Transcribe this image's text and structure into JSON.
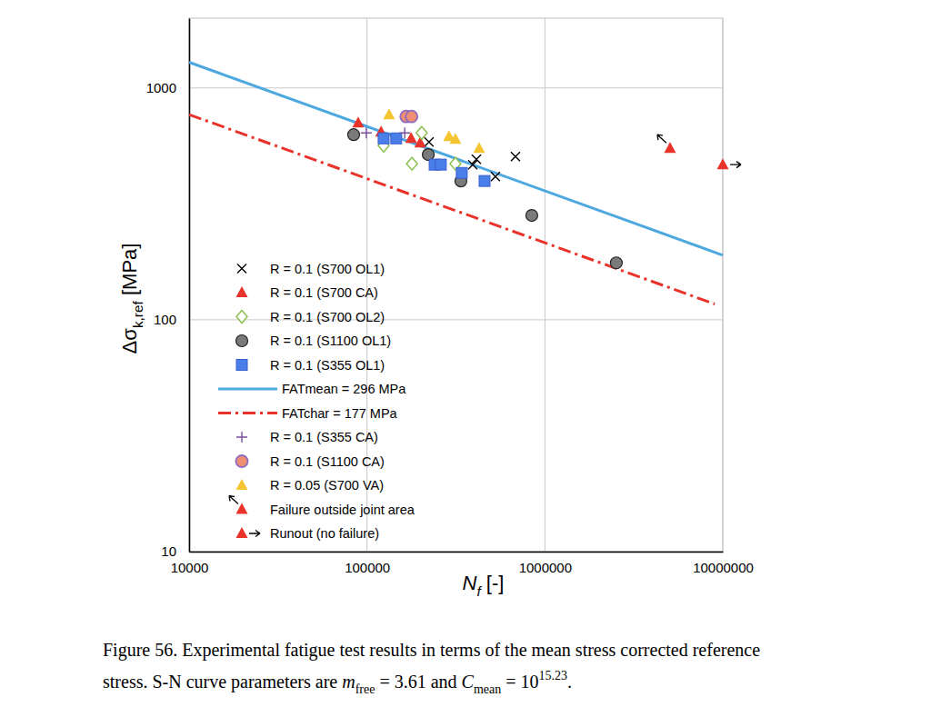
{
  "chart_data": {
    "type": "scatter",
    "log": true,
    "grid": true,
    "legend": "lower left",
    "xlabel": [
      {
        "text": "N",
        "style": "italic"
      },
      {
        "text": "f",
        "style": "sub-italic"
      },
      {
        "text": " [-]",
        "style": "normal"
      }
    ],
    "ylabel": [
      {
        "text": "Δσ",
        "style": "normal"
      },
      {
        "text": "k,ref",
        "style": "sub"
      },
      {
        "text": " [MPa]",
        "style": "normal"
      }
    ],
    "xlim": [
      10000,
      10000000
    ],
    "ylim": [
      10,
      2000
    ],
    "xticks": [
      10000,
      100000,
      1000000,
      10000000
    ],
    "yticks": [
      10,
      100,
      1000
    ],
    "series": [
      {
        "name": "R = 0.1 (S700 OL1)",
        "type": "scatter",
        "marker": "x",
        "color": "#000000",
        "x": [
          223000,
          683000,
          412000,
          393000,
          527000
        ],
        "values": [
          585,
          506,
          493,
          467,
          415
        ]
      },
      {
        "name": "R = 0.1 (S700 CA)",
        "type": "scatter",
        "marker": "triangle",
        "color": "#e8322a",
        "x": [
          89200,
          120000,
          177000,
          199000
        ],
        "values": [
          707,
          646,
          606,
          580
        ]
      },
      {
        "name": "R = 0.1 (S700 OL2)",
        "type": "scatter",
        "marker": "diamond",
        "color": "#8cc152",
        "x": [
          124000,
          179000,
          203000,
          314000
        ],
        "values": [
          564,
          471,
          640,
          471
        ]
      },
      {
        "name": "R = 0.1 (S1100 OL1)",
        "type": "scatter",
        "marker": "circle",
        "color": "#7a7a7a",
        "x": [
          84100,
          221000,
          337000,
          844000,
          2520000
        ],
        "values": [
          629,
          516,
          397,
          282,
          176
        ]
      },
      {
        "name": "R = 0.1 (S355 OL1)",
        "type": "scatter",
        "marker": "square",
        "color": "#4a7ee8",
        "x": [
          124000,
          146000,
          240000,
          260000,
          341000,
          458000
        ],
        "values": [
          606,
          606,
          467,
          467,
          430,
          397
        ]
      },
      {
        "name": "FATmean = 296 MPa",
        "type": "line",
        "line_style": "solid",
        "color": "#4ea8e0",
        "x": [
          10000,
          10000000
        ],
        "values": [
          1291,
          190
        ]
      },
      {
        "name": "FATchar = 177 MPa",
        "type": "line",
        "line_style": "dashdot",
        "color": "#e8322a",
        "x": [
          10000,
          9000000
        ],
        "values": [
          768,
          117
        ]
      },
      {
        "name": "R = 0.1 (S355 CA)",
        "type": "scatter",
        "marker": "plus",
        "color": "#7a4fa0",
        "x": [
          99100,
          163000
        ],
        "values": [
          640,
          640
        ]
      },
      {
        "name": "R = 0.1 (S1100 CA)",
        "type": "scatter",
        "marker": "ringed-circle",
        "color": "#ee8f73",
        "x": [
          166000,
          178000
        ],
        "values": [
          753,
          753
        ]
      },
      {
        "name": "R = 0.05 (S700 VA)",
        "type": "scatter",
        "marker": "triangle",
        "color": "#f5c431",
        "x": [
          133000,
          289000,
          314000,
          427000
        ],
        "values": [
          767,
          617,
          601,
          549
        ]
      },
      {
        "name": "Failure outside joint area",
        "type": "scatter",
        "marker": "failure-arrow",
        "color": "#e8322a",
        "x": [
          5050000
        ],
        "values": [
          549
        ]
      },
      {
        "name": "Runout (no failure)",
        "type": "scatter",
        "marker": "runout-arrow",
        "color": "#e8322a",
        "x": [
          10000000
        ],
        "values": [
          467
        ]
      }
    ],
    "caption": [
      [
        {
          "text": "Figure 56. Experimental fatigue test results in terms of the mean stress corrected reference",
          "style": "normal"
        }
      ],
      [
        {
          "text": "stress. S-N curve parameters are ",
          "style": "normal"
        },
        {
          "text": "m",
          "style": "italic"
        },
        {
          "text": "free",
          "style": "sub"
        },
        {
          "text": " = 3.61 and ",
          "style": "normal"
        },
        {
          "text": "C",
          "style": "italic"
        },
        {
          "text": "mean",
          "style": "sub"
        },
        {
          "text": " = 10",
          "style": "normal"
        },
        {
          "text": "15.23",
          "style": "sup"
        },
        {
          "text": ".",
          "style": "normal"
        }
      ]
    ]
  }
}
